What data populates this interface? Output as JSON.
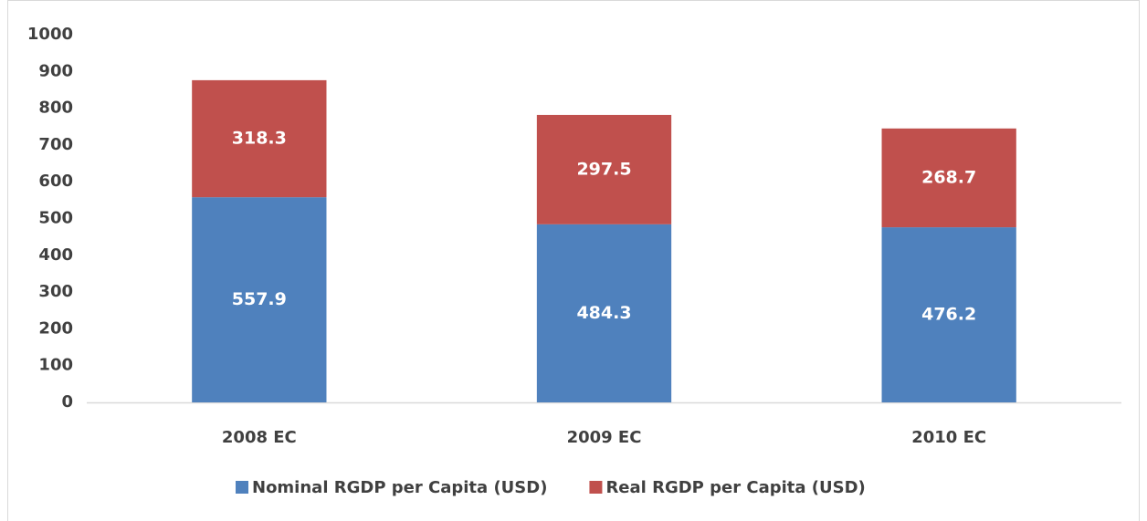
{
  "chart_data": {
    "type": "stacked_bar",
    "categories": [
      "2008 EC",
      "2009 EC",
      "2010 EC"
    ],
    "series": [
      {
        "name": "Nominal RGDP per Capita (USD)",
        "color": "#4f81bd",
        "values": [
          557.9,
          484.3,
          476.2
        ]
      },
      {
        "name": "Real RGDP per Capita (USD)",
        "color": "#c0504d",
        "values": [
          318.3,
          297.5,
          268.7
        ]
      }
    ],
    "ylim": [
      0,
      1000
    ],
    "yticks": [
      0,
      100,
      200,
      300,
      400,
      500,
      600,
      700,
      800,
      900,
      1000
    ],
    "grid": false,
    "legend": "bottom"
  }
}
